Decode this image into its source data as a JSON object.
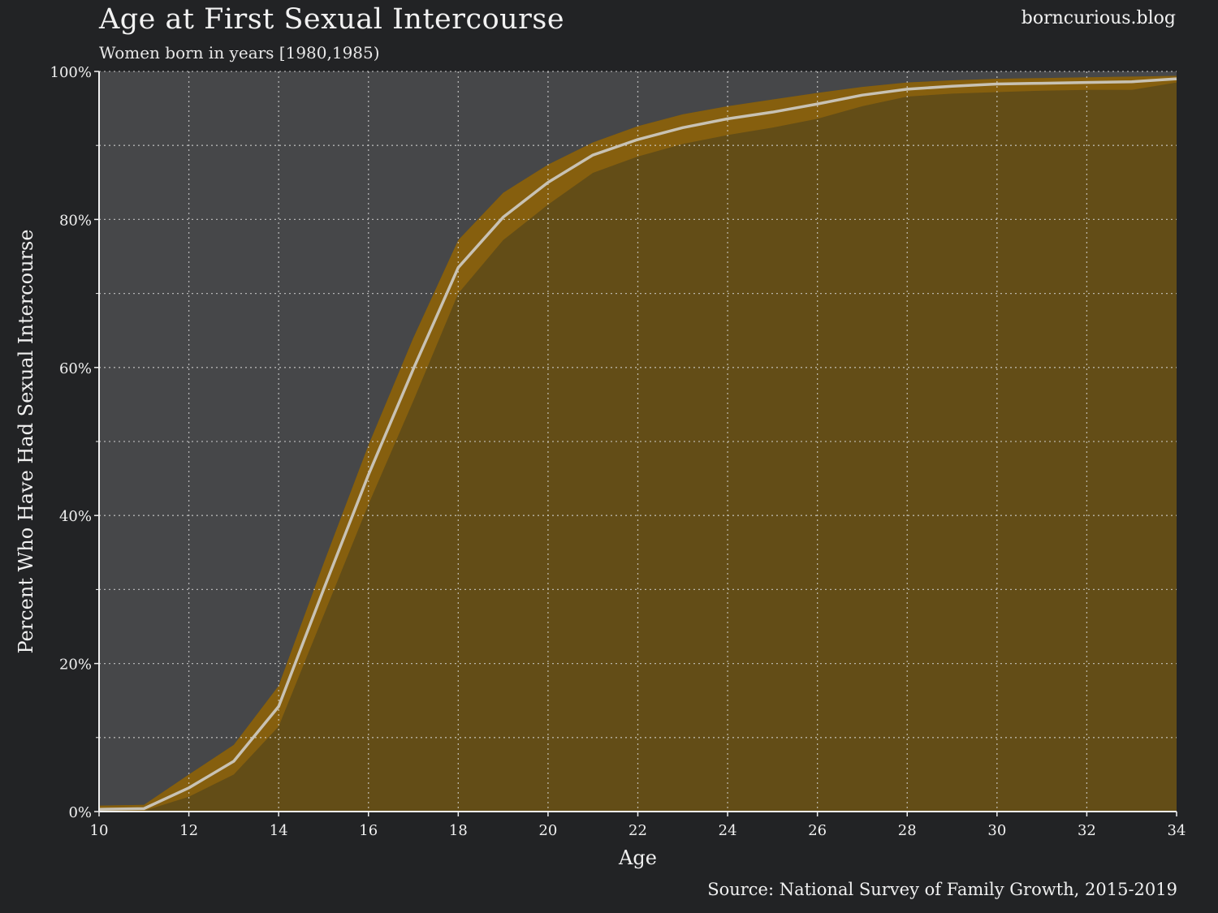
{
  "header": {
    "title": "Age at First Sexual Intercourse",
    "subtitle": "Women born in years [1980,1985)",
    "site": "borncurious.blog"
  },
  "footer": {
    "source": "Source: National Survey of Family Growth, 2015-2019"
  },
  "colors": {
    "page_background": "#222325",
    "plot_background": "#464749",
    "fill_below": "#634d17",
    "ci_band": "#8a620d",
    "line": "#c8c2b4",
    "grid": "#d8d8d8"
  },
  "chart_data": {
    "type": "area",
    "title": "Age at First Sexual Intercourse",
    "subtitle": "Women born in years [1980,1985)",
    "xlabel": "Age",
    "ylabel": "Percent Who Have Had Sexual Intercourse",
    "xlim": [
      10,
      34
    ],
    "ylim": [
      0,
      100
    ],
    "xticks": [
      10,
      12,
      14,
      16,
      18,
      20,
      22,
      24,
      26,
      28,
      30,
      32,
      34
    ],
    "yticks": [
      0,
      20,
      40,
      60,
      80,
      100
    ],
    "ytick_labels": [
      "0%",
      "20%",
      "40%",
      "60%",
      "80%",
      "100%"
    ],
    "y_minor_ticks": [
      10,
      30,
      50,
      70,
      90
    ],
    "grid": true,
    "legend": "none",
    "series": [
      {
        "x": [
          10,
          11,
          12,
          13,
          14,
          15,
          16,
          17,
          18,
          19,
          20,
          21,
          22,
          23,
          24,
          25,
          26,
          27,
          28,
          29,
          30,
          31,
          32,
          33,
          34
        ],
        "y": [
          0.3,
          0.4,
          3.2,
          6.8,
          14.2,
          30.0,
          45.5,
          59.8,
          73.5,
          80.3,
          85.0,
          88.7,
          90.8,
          92.4,
          93.6,
          94.5,
          95.6,
          96.8,
          97.6,
          98.0,
          98.3,
          98.4,
          98.5,
          98.6,
          99.0
        ],
        "ci_low": [
          0.0,
          0.1,
          2.0,
          5.0,
          11.5,
          26.5,
          41.5,
          55.5,
          70.0,
          77.2,
          82.0,
          86.3,
          88.5,
          90.2,
          91.4,
          92.4,
          93.6,
          95.3,
          96.6,
          97.0,
          97.2,
          97.4,
          97.5,
          97.5,
          98.5
        ],
        "ci_high": [
          0.8,
          0.9,
          5.0,
          9.0,
          17.0,
          33.5,
          49.5,
          64.0,
          77.2,
          83.6,
          87.4,
          90.4,
          92.6,
          94.2,
          95.3,
          96.2,
          97.1,
          97.9,
          98.5,
          98.8,
          99.0,
          99.1,
          99.2,
          99.3,
          99.4
        ]
      }
    ]
  }
}
